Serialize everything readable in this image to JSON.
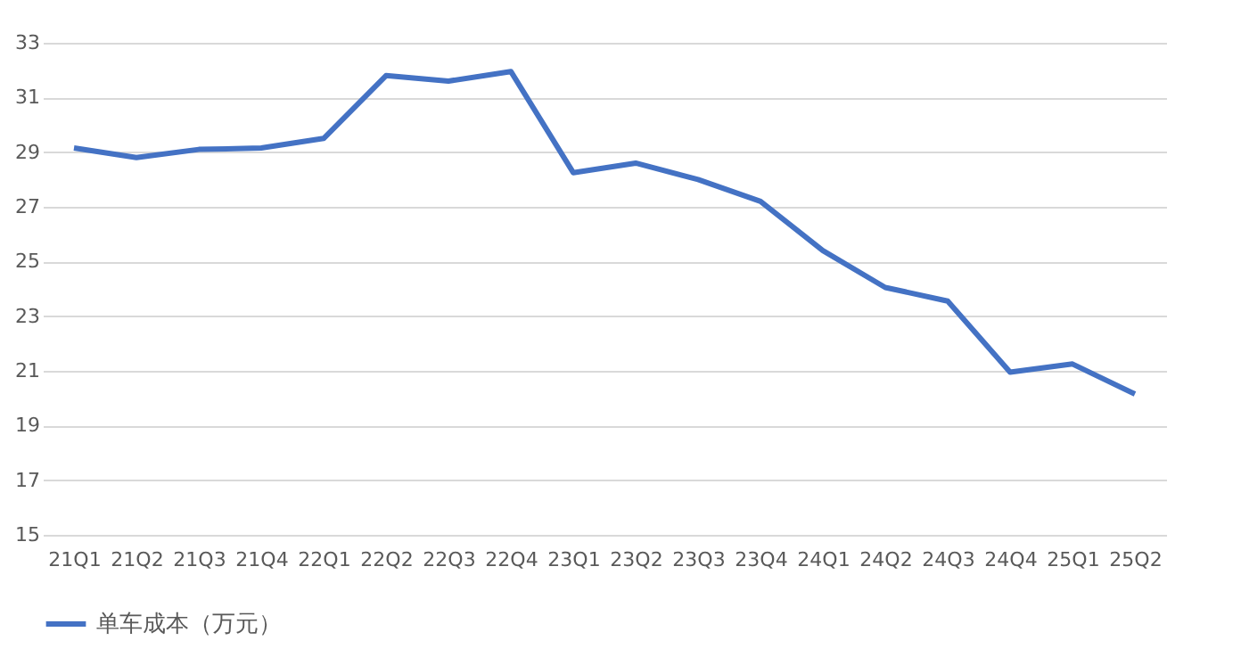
{
  "chart_data": {
    "type": "line",
    "categories": [
      "21Q1",
      "21Q2",
      "21Q3",
      "21Q4",
      "22Q1",
      "22Q2",
      "22Q3",
      "22Q4",
      "23Q1",
      "23Q2",
      "23Q3",
      "23Q4",
      "24Q1",
      "24Q2",
      "24Q3",
      "24Q4",
      "25Q1",
      "25Q2"
    ],
    "series": [
      {
        "name": "单车成本（万元）",
        "color": "#4472c4",
        "values": [
          29.15,
          28.8,
          29.1,
          29.15,
          29.5,
          31.8,
          31.6,
          31.95,
          28.25,
          28.6,
          28.0,
          27.2,
          25.4,
          24.05,
          23.55,
          20.95,
          21.25,
          20.15
        ]
      }
    ],
    "ylim": [
      15,
      33
    ],
    "yticks": [
      15,
      17,
      19,
      21,
      23,
      25,
      27,
      29,
      31,
      33
    ],
    "grid": "y",
    "legend": "bottom",
    "marker": "none",
    "line_style": "solid"
  }
}
